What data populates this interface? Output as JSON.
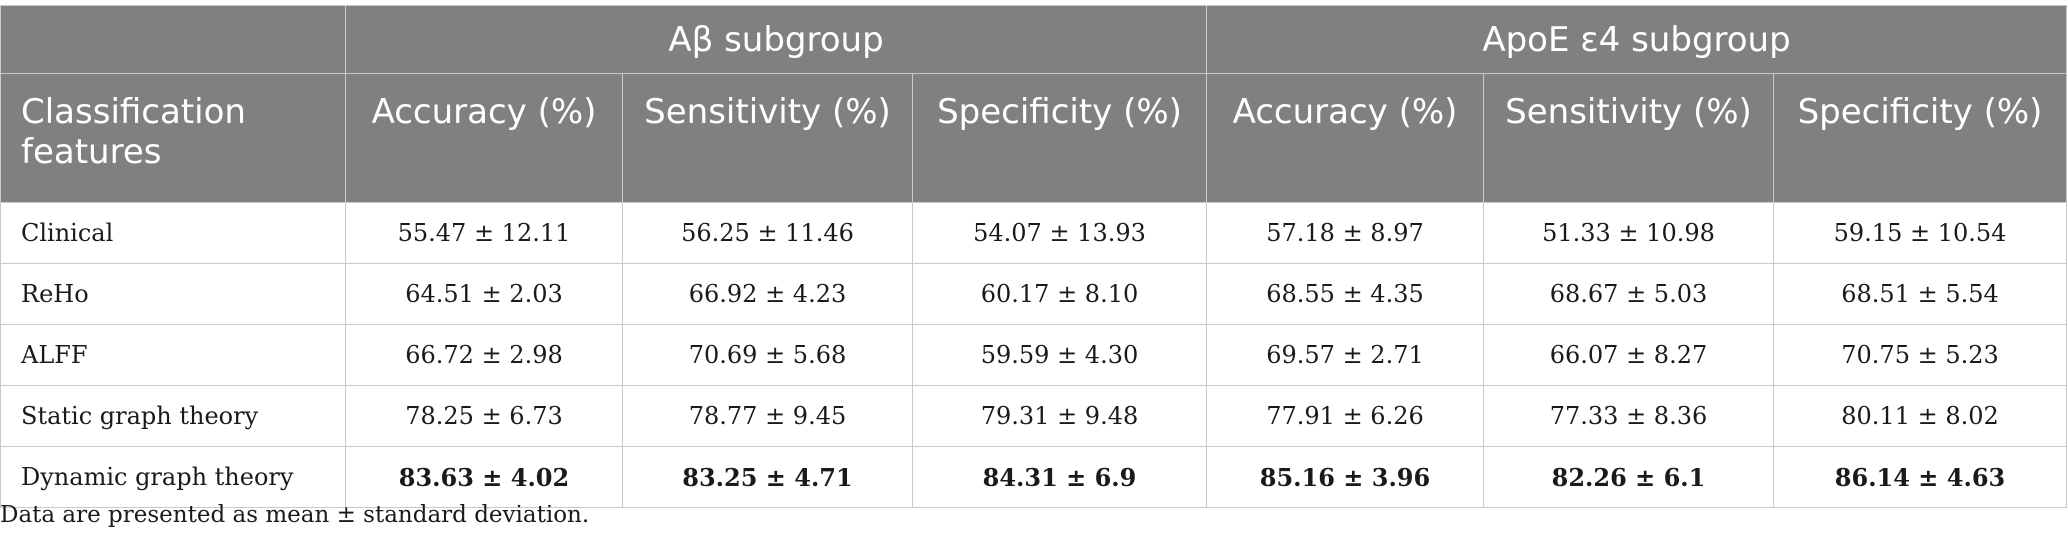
{
  "groups": {
    "empty": "",
    "abeta": "Aβ subgroup",
    "apoe": "ApoE ε4 subgroup"
  },
  "columns": {
    "features": "Classification features",
    "ab_accuracy": "Accuracy (%)",
    "ab_sensitivity": "Sensitivity (%)",
    "ab_specificity": "Specificity (%)",
    "apoe_accuracy": "Accuracy (%)",
    "apoe_sensitivity": "Sensitivity (%)",
    "apoe_specificity": "Specificity (%)"
  },
  "rows": [
    {
      "feature": "Clinical",
      "values": [
        "55.47 ± 12.11",
        "56.25 ± 11.46",
        "54.07 ± 13.93",
        "57.18 ± 8.97",
        "51.33 ± 10.98",
        "59.15 ± 10.54"
      ]
    },
    {
      "feature": "ReHo",
      "values": [
        "64.51 ± 2.03",
        "66.92 ± 4.23",
        "60.17 ± 8.10",
        "68.55 ± 4.35",
        "68.67 ± 5.03",
        "68.51 ± 5.54"
      ]
    },
    {
      "feature": "ALFF",
      "values": [
        "66.72 ± 2.98",
        "70.69 ± 5.68",
        "59.59 ± 4.30",
        "69.57 ± 2.71",
        "66.07 ± 8.27",
        "70.75 ± 5.23"
      ]
    },
    {
      "feature": "Static graph theory",
      "values": [
        "78.25 ± 6.73",
        "78.77 ± 9.45",
        "79.31 ± 9.48",
        "77.91 ± 6.26",
        "77.33 ± 8.36",
        "80.11 ± 8.02"
      ]
    },
    {
      "feature": "Dynamic graph theory",
      "values": [
        "83.63 ± 4.02",
        "83.25 ± 4.71",
        "84.31 ± 6.9",
        "85.16 ± 3.96",
        "82.26 ± 6.1",
        "86.14 ± 4.63"
      ]
    }
  ],
  "footnote": "Data are presented as mean ± standard deviation."
}
